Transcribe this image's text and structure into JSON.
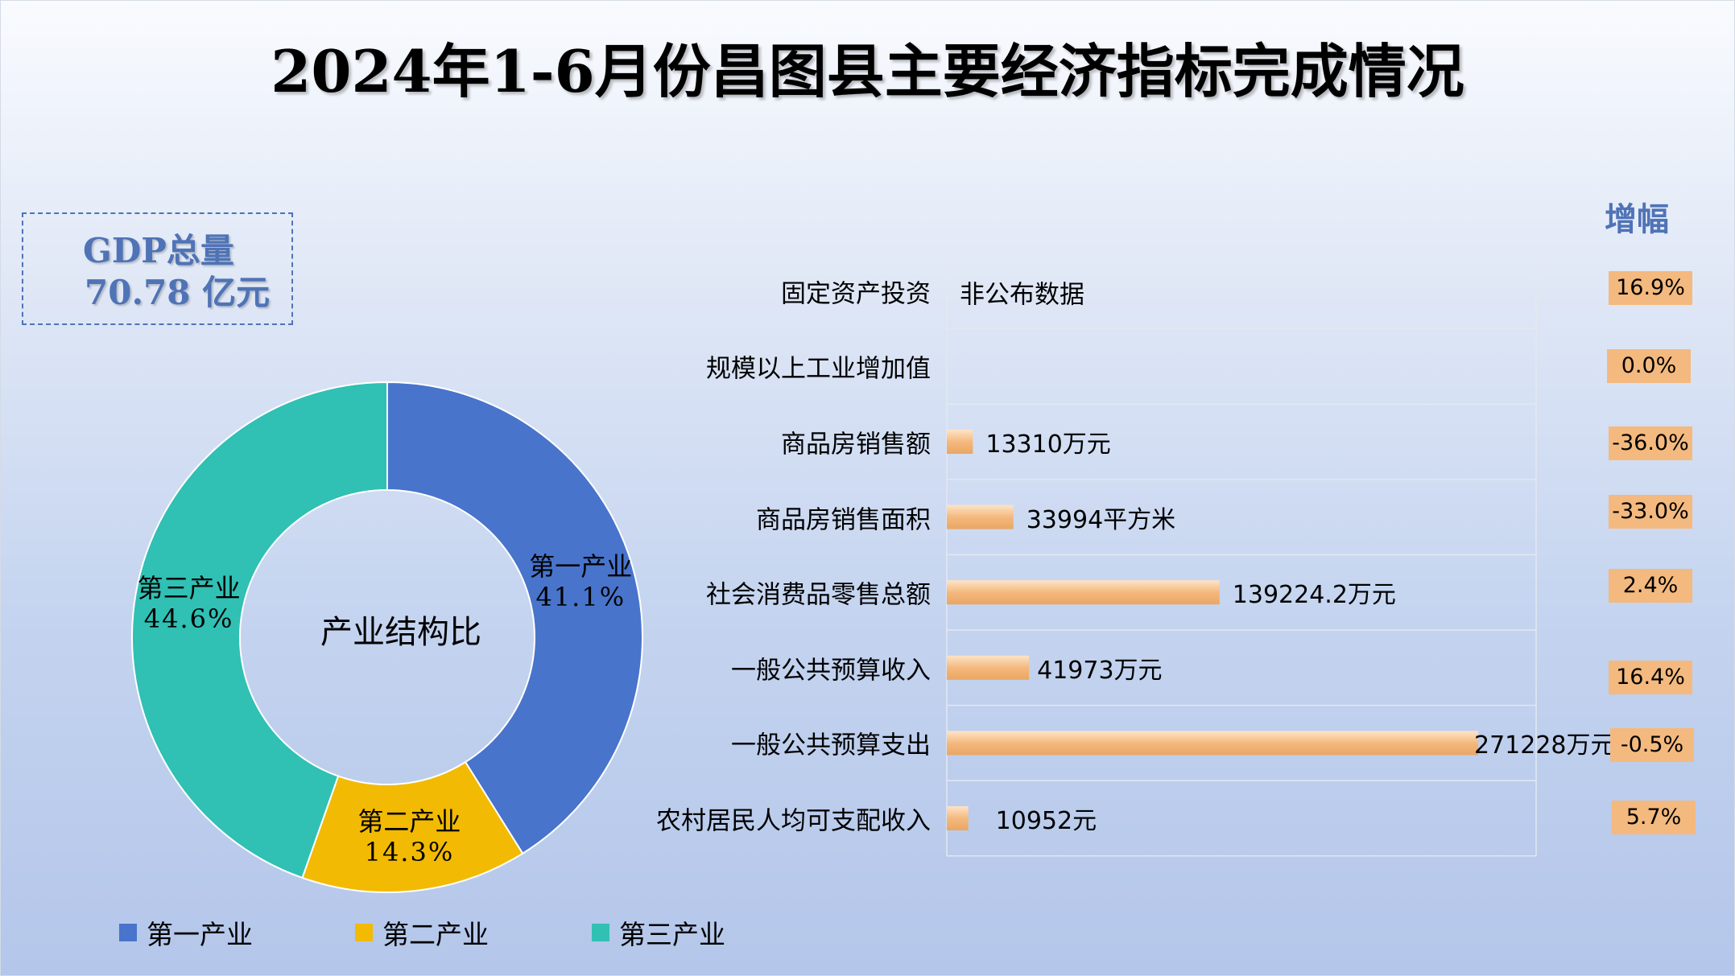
{
  "title": "2024年1-6月份昌图县主要经济指标完成情况",
  "gdp": {
    "label": "GDP总量",
    "value": "70.78 亿元"
  },
  "colors": {
    "primary": "#4874CB",
    "secondary": "#F2BA02",
    "tertiary": "#30C0B4",
    "bar": "#F4B97E",
    "badge": "#F4B97E",
    "accent": "#4F73B6"
  },
  "growth_header": "增幅",
  "not_published": "非公布数据",
  "chart_data": [
    {
      "type": "pie",
      "donut": true,
      "center_label": "产业结构比",
      "categories": [
        "第一产业",
        "第二产业",
        "第三产业"
      ],
      "values": [
        41.1,
        14.3,
        44.6
      ],
      "value_labels": [
        "41.1%",
        "14.3%",
        "44.6%"
      ],
      "legend": [
        "第一产业",
        "第二产业",
        "第三产业"
      ],
      "legend_position": "bottom"
    },
    {
      "type": "bar",
      "orientation": "horizontal",
      "categories": [
        "固定资产投资",
        "规模以上工业增加值",
        "商品房销售额",
        "商品房销售面积",
        "社会消费品零售总额",
        "一般公共预算收入",
        "一般公共预算支出",
        "农村居民人均可支配收入"
      ],
      "values": [
        null,
        null,
        13310,
        33994,
        139224.2,
        41973,
        271228,
        10952
      ],
      "value_labels": [
        "",
        "",
        "13310万元",
        "33994平方米",
        "139224.2万元",
        "41973万元",
        "271228万元",
        "10952元"
      ],
      "growth": [
        "16.9%",
        "0.0%",
        "-36.0%",
        "-33.0%",
        "2.4%",
        "16.4%",
        "-0.5%",
        "5.7%"
      ],
      "grid": true
    }
  ]
}
